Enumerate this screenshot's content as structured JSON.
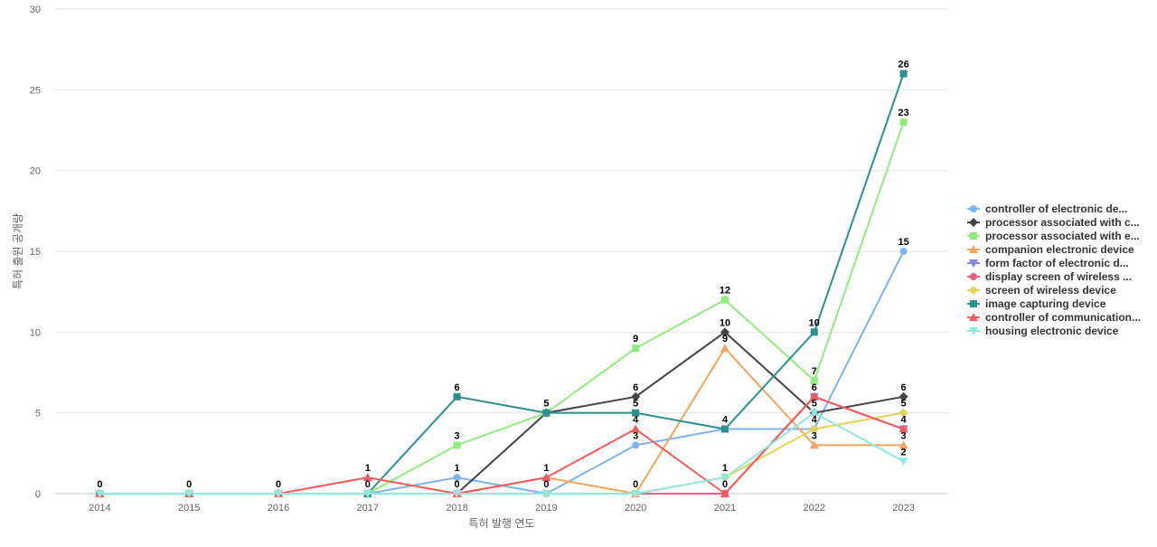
{
  "chart_data": {
    "type": "line",
    "title": "",
    "xlabel": "특허 발행 연도",
    "ylabel": "특허 출원 공개량",
    "ylim": [
      0,
      30
    ],
    "yticks": [
      0,
      5,
      10,
      15,
      20,
      25,
      30
    ],
    "grid": true,
    "legend": "right",
    "categories": [
      "2014",
      "2015",
      "2016",
      "2017",
      "2018",
      "2019",
      "2020",
      "2021",
      "2022",
      "2023"
    ],
    "series": [
      {
        "name": "controller of electronic de...",
        "color": "#7cb5ec",
        "marker": "circle",
        "values": [
          0,
          0,
          0,
          0,
          1,
          0,
          3,
          4,
          4,
          15
        ]
      },
      {
        "name": "processor associated with c...",
        "color": "#434348",
        "marker": "diamond",
        "values": [
          0,
          0,
          0,
          0,
          0,
          5,
          6,
          10,
          5,
          6
        ]
      },
      {
        "name": "processor associated with e...",
        "color": "#90ed7d",
        "marker": "square",
        "values": [
          0,
          0,
          0,
          0,
          3,
          5,
          9,
          12,
          7,
          23
        ]
      },
      {
        "name": "companion electronic device",
        "color": "#f7a35c",
        "marker": "triangle",
        "values": [
          0,
          0,
          0,
          0,
          0,
          1,
          0,
          9,
          3,
          3
        ]
      },
      {
        "name": "form factor of electronic d...",
        "color": "#8085e9",
        "marker": "triangle-down",
        "values": [
          0,
          0,
          0,
          0,
          0,
          0,
          0,
          0,
          6,
          4
        ]
      },
      {
        "name": "display screen of wireless ...",
        "color": "#f15c80",
        "marker": "circle",
        "values": [
          0,
          0,
          0,
          0,
          0,
          0,
          0,
          0,
          6,
          4
        ]
      },
      {
        "name": "screen of wireless device",
        "color": "#e4d354",
        "marker": "diamond",
        "values": [
          0,
          0,
          0,
          0,
          0,
          0,
          0,
          1,
          4,
          5
        ]
      },
      {
        "name": "image capturing device",
        "color": "#2b908f",
        "marker": "square",
        "values": [
          0,
          0,
          0,
          0,
          6,
          5,
          5,
          4,
          10,
          26
        ]
      },
      {
        "name": "controller of communication...",
        "color": "#f45b5b",
        "marker": "triangle",
        "values": [
          0,
          0,
          0,
          1,
          0,
          1,
          4,
          0,
          6,
          4
        ]
      },
      {
        "name": "housing electronic device",
        "color": "#91e8e1",
        "marker": "triangle-down",
        "values": [
          0,
          0,
          0,
          0,
          0,
          0,
          0,
          1,
          5,
          2
        ]
      }
    ],
    "data_labels": [
      {
        "x": "2014",
        "text": "0"
      },
      {
        "x": "2015",
        "text": "0"
      },
      {
        "x": "2016",
        "text": "0"
      },
      {
        "x": "2017",
        "text": "1"
      },
      {
        "x": "2017",
        "text": "0"
      },
      {
        "x": "2018",
        "text": "6"
      },
      {
        "x": "2018",
        "text": "3"
      },
      {
        "x": "2018",
        "text": "1"
      },
      {
        "x": "2018",
        "text": "0"
      },
      {
        "x": "2019",
        "text": "5"
      },
      {
        "x": "2019",
        "text": "1"
      },
      {
        "x": "2019",
        "text": "0"
      },
      {
        "x": "2020",
        "text": "9"
      },
      {
        "x": "2020",
        "text": "6"
      },
      {
        "x": "2020",
        "text": "5"
      },
      {
        "x": "2020",
        "text": "4"
      },
      {
        "x": "2020",
        "text": "3"
      },
      {
        "x": "2020",
        "text": "0"
      },
      {
        "x": "2021",
        "text": "12"
      },
      {
        "x": "2021",
        "text": "10"
      },
      {
        "x": "2021",
        "text": "9"
      },
      {
        "x": "2021",
        "text": "4"
      },
      {
        "x": "2021",
        "text": "1"
      },
      {
        "x": "2021",
        "text": "0"
      },
      {
        "x": "2022",
        "text": "10"
      },
      {
        "x": "2022",
        "text": "7"
      },
      {
        "x": "2022",
        "text": "6"
      },
      {
        "x": "2022",
        "text": "5"
      },
      {
        "x": "2022",
        "text": "4"
      },
      {
        "x": "2022",
        "text": "3"
      },
      {
        "x": "2023",
        "text": "26"
      },
      {
        "x": "2023",
        "text": "23"
      },
      {
        "x": "2023",
        "text": "15"
      },
      {
        "x": "2023",
        "text": "6"
      },
      {
        "x": "2023",
        "text": "5"
      },
      {
        "x": "2023",
        "text": "4"
      },
      {
        "x": "2023",
        "text": "3"
      },
      {
        "x": "2023",
        "text": "2"
      }
    ]
  }
}
